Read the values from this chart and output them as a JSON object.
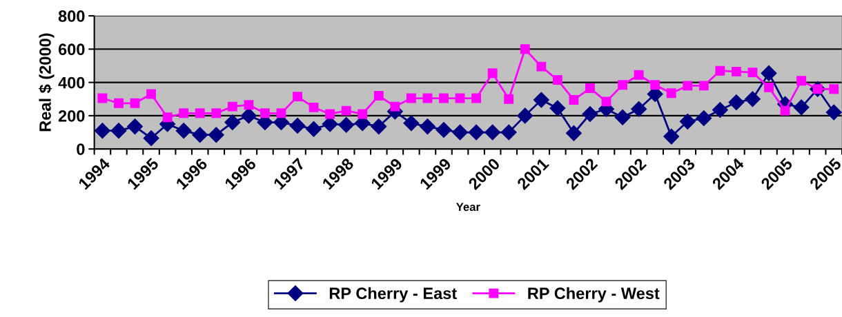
{
  "chart_data": {
    "type": "line",
    "xlabel": "Year",
    "ylabel": "Real $ (2000)",
    "categories": [
      "1994",
      null,
      null,
      "1995",
      null,
      null,
      "1996",
      null,
      null,
      "1996",
      null,
      null,
      "1997",
      null,
      null,
      "1998",
      null,
      null,
      "1999",
      null,
      null,
      "1999",
      null,
      null,
      "2000",
      null,
      null,
      "2001",
      null,
      null,
      "2002",
      null,
      null,
      "2002",
      null,
      null,
      "2003",
      null,
      null,
      "2004",
      null,
      null,
      "2005",
      null,
      null,
      "2005"
    ],
    "series": [
      {
        "name": "RP Cherry - East",
        "color": "#000080",
        "marker": "diamond",
        "values": [
          110,
          110,
          135,
          65,
          150,
          110,
          85,
          85,
          160,
          200,
          160,
          160,
          140,
          120,
          150,
          145,
          155,
          135,
          225,
          155,
          135,
          115,
          100,
          100,
          100,
          100,
          200,
          295,
          245,
          95,
          210,
          240,
          190,
          240,
          330,
          75,
          165,
          185,
          235,
          280,
          300,
          455,
          270,
          250,
          360,
          220
        ]
      },
      {
        "name": "RP Cherry - West",
        "color": "#ff00ff",
        "marker": "square",
        "values": [
          305,
          275,
          275,
          330,
          190,
          215,
          215,
          215,
          255,
          265,
          215,
          215,
          315,
          250,
          210,
          230,
          210,
          320,
          255,
          305,
          305,
          305,
          305,
          305,
          455,
          300,
          600,
          495,
          415,
          295,
          365,
          285,
          385,
          445,
          385,
          335,
          380,
          380,
          470,
          465,
          460,
          370,
          230,
          410,
          360,
          360
        ]
      }
    ],
    "ylim": [
      0,
      800
    ],
    "yticks": [
      0,
      200,
      400,
      600,
      800
    ],
    "grid": "y",
    "legend": "bottom",
    "line_style": "solid"
  }
}
